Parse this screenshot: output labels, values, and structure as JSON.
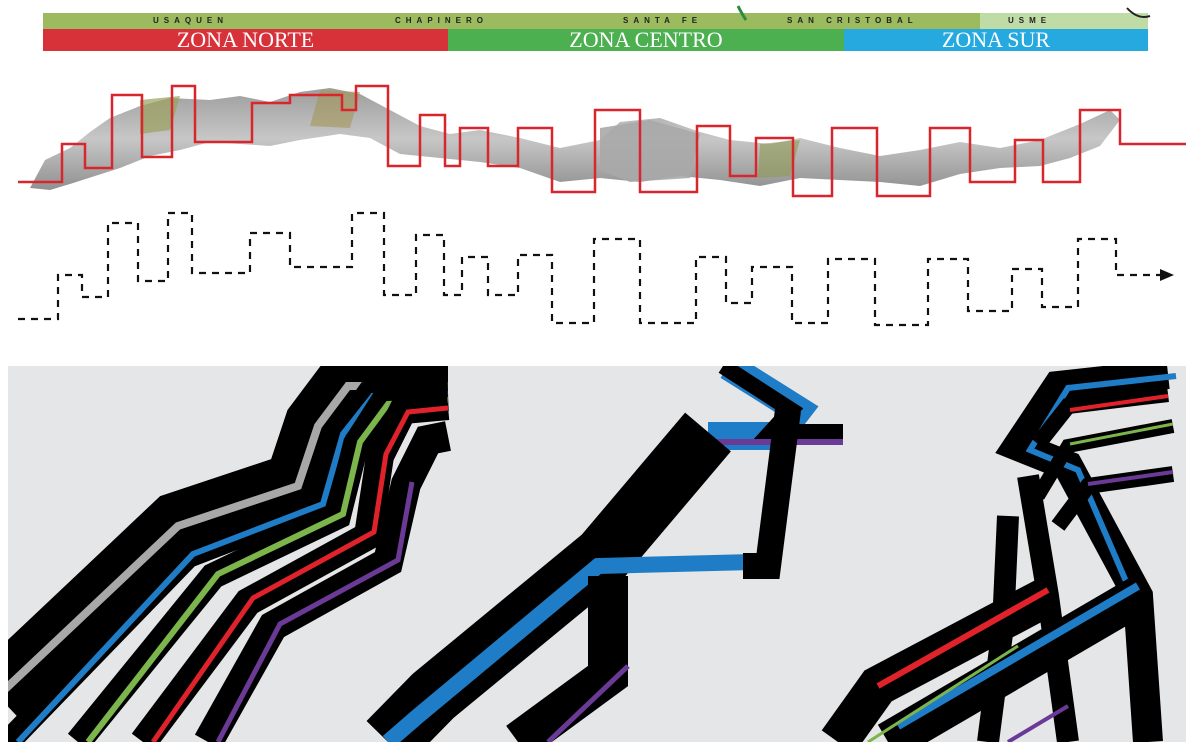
{
  "localities": [
    "USAQUEN",
    "CHAPINERO",
    "SANTA FE",
    "SAN CRISTOBAL",
    "USME"
  ],
  "zones": [
    {
      "label": "ZONA NORTE",
      "color": "#d7313a"
    },
    {
      "label": "ZONA CENTRO",
      "color": "#4caf50"
    },
    {
      "label": "ZONA SUR",
      "color": "#25a9df"
    }
  ],
  "colors": {
    "zigzag_red": "#d9262d",
    "bands_background": "#e4e6e8",
    "band_black": "#000000",
    "accent_gray": "#a8a8a8",
    "accent_blue": "#1f7cc6",
    "accent_green": "#7bb54b",
    "accent_red": "#e0232b",
    "accent_purple": "#6b3a97"
  }
}
